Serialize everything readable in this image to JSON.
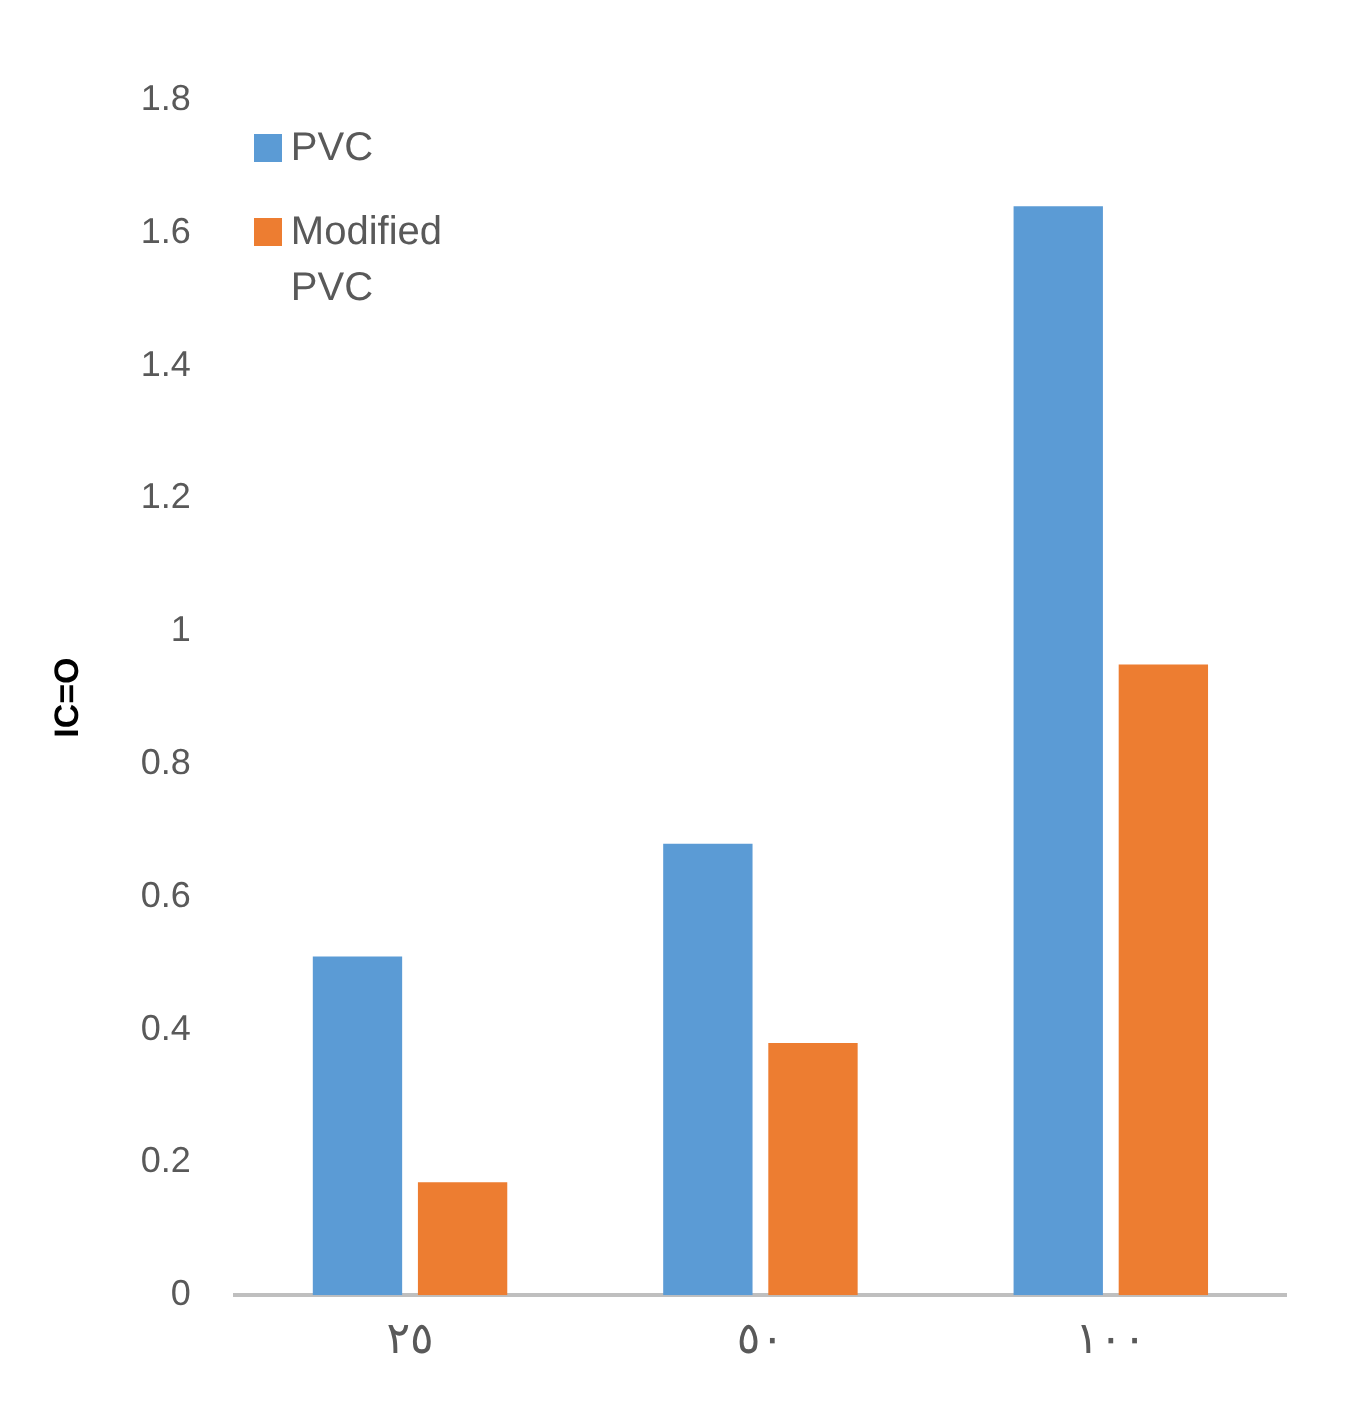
{
  "chart_data": {
    "type": "bar",
    "ylabel": "IC=O",
    "categories": [
      "٢٥",
      "٥٠",
      "١٠٠"
    ],
    "series": [
      {
        "name": "PVC",
        "color": "#5b9bd5",
        "values": [
          0.51,
          0.68,
          1.64
        ]
      },
      {
        "name": "Modified PVC",
        "color": "#ed7d31",
        "values": [
          0.17,
          0.38,
          0.95
        ]
      }
    ],
    "ylim": [
      0,
      1.8
    ],
    "yticks": [
      0,
      0.2,
      0.4,
      0.6,
      0.8,
      1,
      1.2,
      1.4,
      1.6,
      1.8
    ],
    "grid": false,
    "legend": "top left"
  }
}
